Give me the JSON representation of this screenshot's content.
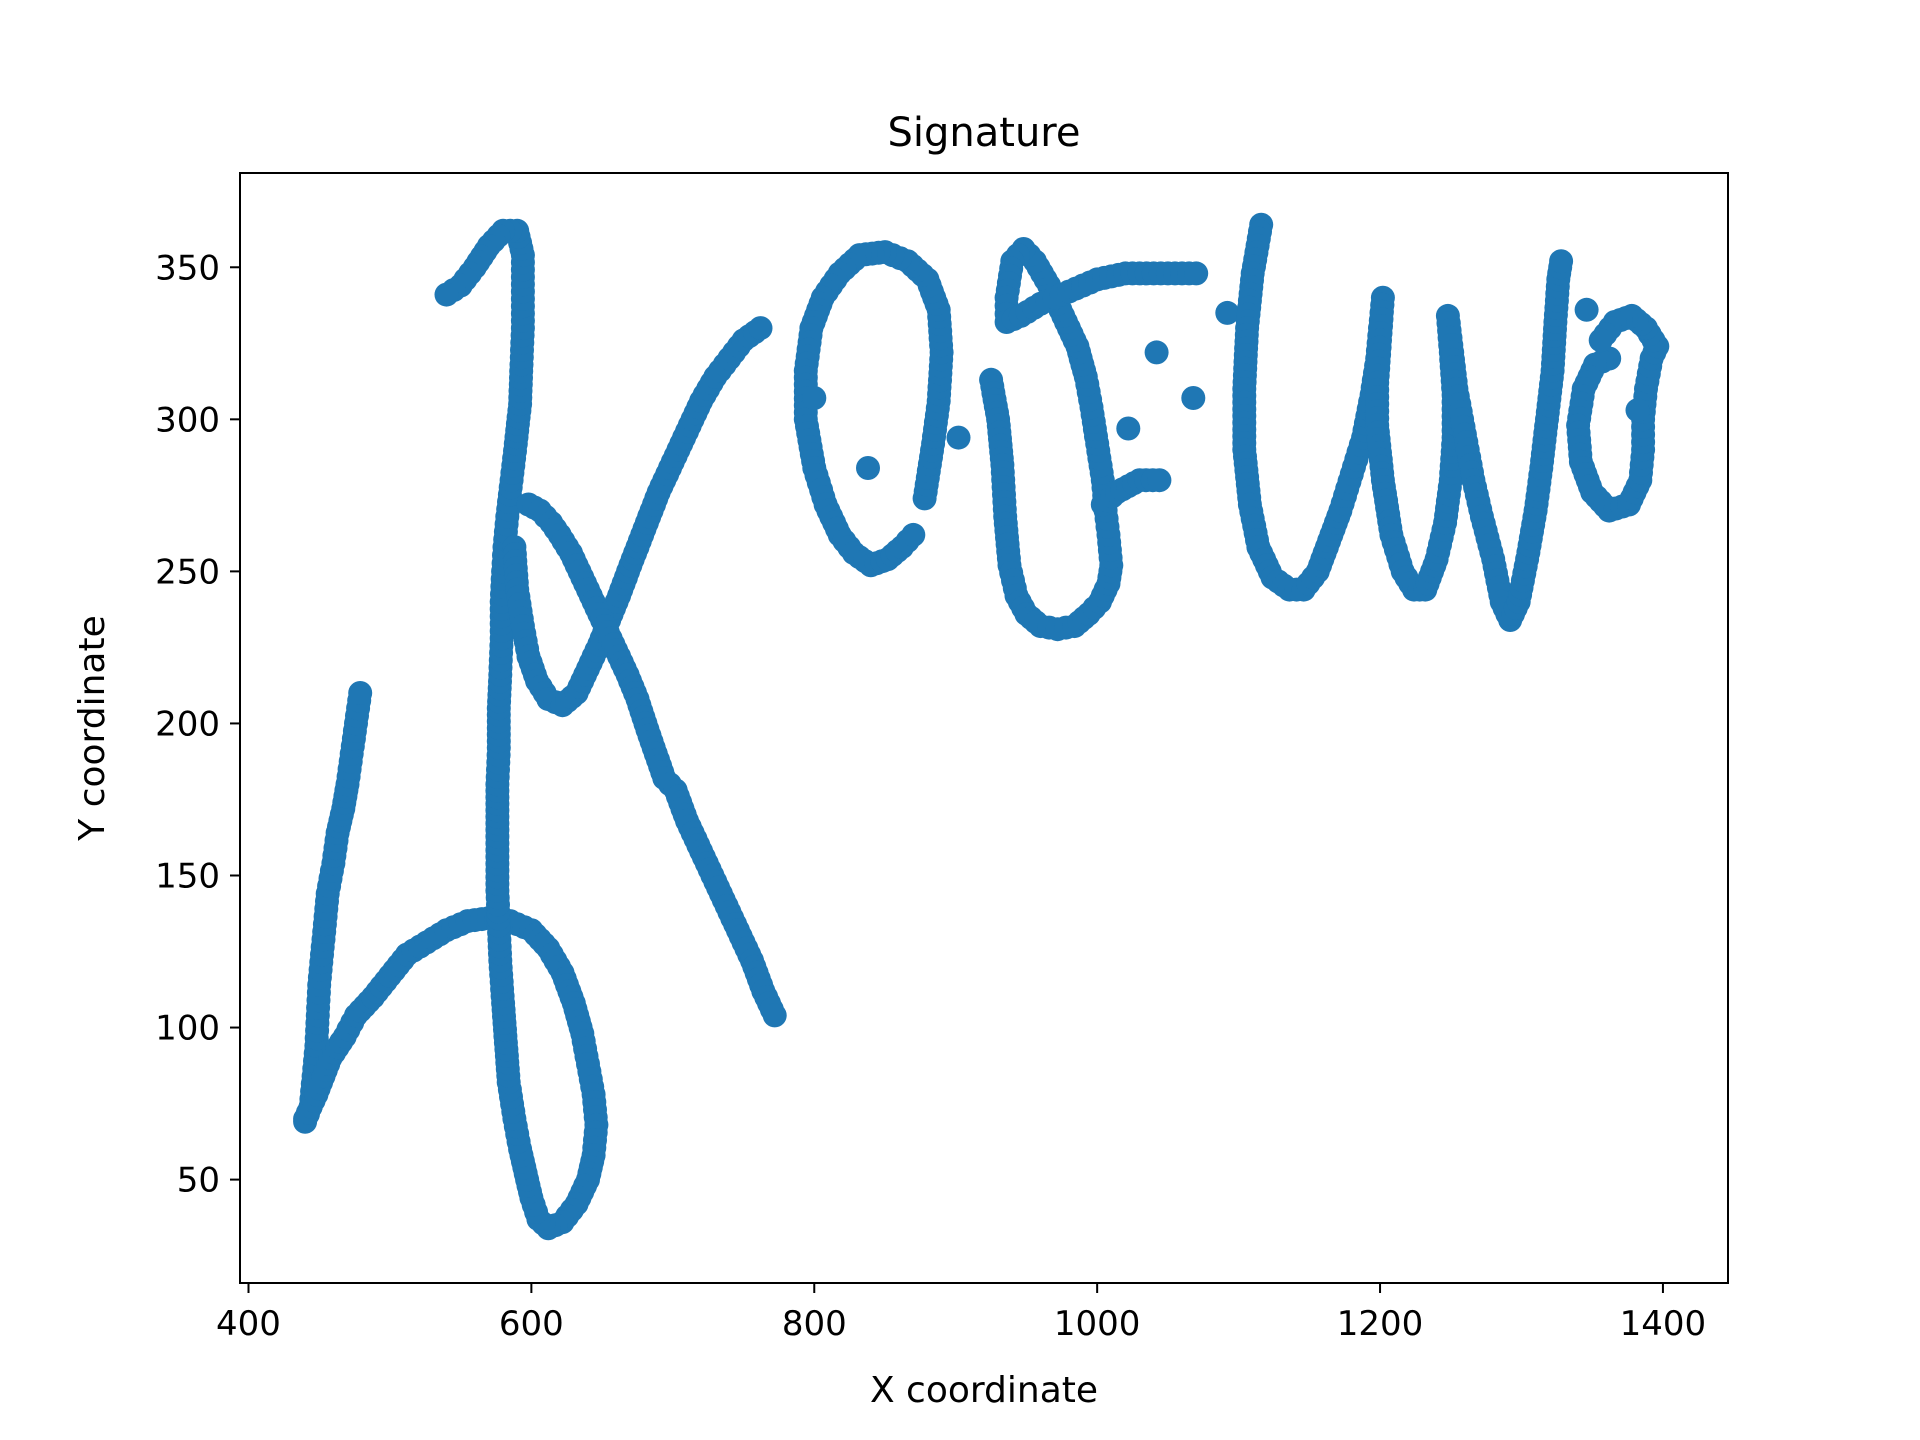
{
  "chart_data": {
    "type": "scatter",
    "title": "Signature",
    "xlabel": "X coordinate",
    "ylabel": "Y coordinate",
    "xlim": [
      394,
      1446
    ],
    "ylim": [
      16,
      381
    ],
    "xticks": [
      400,
      600,
      800,
      1000,
      1200,
      1400
    ],
    "yticks": [
      50,
      100,
      150,
      200,
      250,
      300,
      350
    ],
    "grid": false,
    "marker_color": "#1f77b4",
    "strokes": [
      {
        "points": [
          [
            440,
            69
          ],
          [
            444,
            74
          ],
          [
            446,
            84
          ],
          [
            448,
            94
          ],
          [
            449,
            104
          ],
          [
            450,
            114
          ],
          [
            452,
            124
          ],
          [
            454,
            134
          ],
          [
            456,
            144
          ],
          [
            460,
            154
          ],
          [
            463,
            164
          ],
          [
            467,
            172
          ],
          [
            470,
            180
          ],
          [
            473,
            190
          ],
          [
            476,
            200
          ],
          [
            479,
            210
          ]
        ]
      },
      {
        "points": [
          [
            440,
            70
          ],
          [
            448,
            78
          ],
          [
            458,
            90
          ],
          [
            468,
            97
          ],
          [
            476,
            104
          ],
          [
            488,
            110
          ],
          [
            500,
            117
          ],
          [
            512,
            124
          ],
          [
            526,
            128
          ],
          [
            540,
            132
          ],
          [
            555,
            135
          ],
          [
            570,
            136
          ],
          [
            585,
            135
          ],
          [
            600,
            132
          ],
          [
            612,
            126
          ],
          [
            622,
            118
          ],
          [
            630,
            108
          ],
          [
            636,
            98
          ],
          [
            640,
            88
          ],
          [
            644,
            78
          ],
          [
            646,
            68
          ],
          [
            644,
            58
          ],
          [
            640,
            50
          ],
          [
            632,
            42
          ],
          [
            622,
            36
          ],
          [
            612,
            34
          ],
          [
            605,
            37
          ],
          [
            600,
            44
          ],
          [
            596,
            52
          ],
          [
            592,
            60
          ],
          [
            588,
            70
          ],
          [
            584,
            82
          ],
          [
            582,
            95
          ],
          [
            580,
            108
          ],
          [
            578,
            122
          ],
          [
            576,
            145
          ],
          [
            576,
            165
          ],
          [
            576,
            180
          ],
          [
            577,
            192
          ],
          [
            577,
            205
          ],
          [
            578,
            216
          ],
          [
            579,
            228
          ],
          [
            579,
            240
          ],
          [
            580,
            250
          ],
          [
            581,
            258
          ],
          [
            583,
            268
          ],
          [
            586,
            280
          ],
          [
            589,
            292
          ],
          [
            592,
            305
          ],
          [
            593,
            318
          ],
          [
            594,
            330
          ],
          [
            594,
            342
          ],
          [
            594,
            354
          ],
          [
            590,
            362
          ],
          [
            580,
            362
          ],
          [
            570,
            357
          ],
          [
            560,
            350
          ],
          [
            550,
            344
          ],
          [
            540,
            341
          ]
        ]
      },
      {
        "points": [
          [
            588,
            258
          ],
          [
            590,
            244
          ],
          [
            594,
            232
          ],
          [
            598,
            222
          ],
          [
            604,
            214
          ],
          [
            612,
            208
          ],
          [
            622,
            206
          ],
          [
            632,
            210
          ],
          [
            640,
            218
          ],
          [
            648,
            226
          ],
          [
            655,
            234
          ],
          [
            662,
            242
          ],
          [
            670,
            252
          ],
          [
            680,
            264
          ],
          [
            690,
            276
          ],
          [
            700,
            286
          ],
          [
            710,
            296
          ],
          [
            720,
            306
          ],
          [
            730,
            314
          ],
          [
            740,
            320
          ],
          [
            750,
            326
          ],
          [
            762,
            330
          ]
        ]
      },
      {
        "points": [
          [
            598,
            272
          ],
          [
            606,
            270
          ],
          [
            614,
            266
          ],
          [
            620,
            262
          ],
          [
            628,
            256
          ],
          [
            636,
            248
          ],
          [
            644,
            240
          ],
          [
            652,
            232
          ],
          [
            660,
            224
          ],
          [
            668,
            216
          ],
          [
            675,
            208
          ],
          [
            682,
            198
          ],
          [
            688,
            190
          ],
          [
            694,
            182
          ],
          [
            702,
            178
          ],
          [
            710,
            168
          ],
          [
            720,
            158
          ],
          [
            730,
            148
          ],
          [
            740,
            138
          ],
          [
            748,
            130
          ],
          [
            756,
            122
          ],
          [
            764,
            112
          ],
          [
            772,
            104
          ]
        ]
      },
      {
        "points": [
          [
            878,
            274
          ],
          [
            884,
            292
          ],
          [
            888,
            306
          ],
          [
            890,
            322
          ],
          [
            888,
            336
          ],
          [
            880,
            346
          ],
          [
            866,
            352
          ],
          [
            850,
            355
          ],
          [
            832,
            354
          ],
          [
            818,
            348
          ],
          [
            806,
            340
          ],
          [
            798,
            330
          ],
          [
            794,
            316
          ],
          [
            794,
            300
          ],
          [
            800,
            284
          ],
          [
            808,
            272
          ],
          [
            818,
            262
          ],
          [
            828,
            256
          ],
          [
            840,
            252
          ],
          [
            852,
            254
          ],
          [
            862,
            258
          ],
          [
            870,
            262
          ]
        ]
      },
      {
        "points": [
          [
            800,
            307
          ]
        ]
      },
      {
        "points": [
          [
            838,
            284
          ]
        ]
      },
      {
        "points": [
          [
            902,
            294
          ]
        ]
      },
      {
        "points": [
          [
            925,
            313
          ],
          [
            930,
            300
          ],
          [
            933,
            285
          ],
          [
            935,
            268
          ],
          [
            938,
            252
          ],
          [
            943,
            242
          ],
          [
            950,
            236
          ],
          [
            960,
            232
          ],
          [
            972,
            231
          ],
          [
            984,
            232
          ],
          [
            994,
            236
          ],
          [
            1002,
            240
          ],
          [
            1008,
            246
          ],
          [
            1010,
            252
          ],
          [
            1008,
            262
          ],
          [
            1006,
            270
          ],
          [
            1004,
            280
          ],
          [
            1000,
            292
          ],
          [
            996,
            304
          ],
          [
            992,
            314
          ],
          [
            986,
            324
          ],
          [
            976,
            334
          ],
          [
            966,
            344
          ],
          [
            956,
            352
          ],
          [
            948,
            356
          ],
          [
            940,
            352
          ],
          [
            936,
            340
          ],
          [
            936,
            332
          ],
          [
            946,
            334
          ],
          [
            960,
            338
          ],
          [
            980,
            342
          ],
          [
            1000,
            346
          ],
          [
            1020,
            348
          ],
          [
            1040,
            348
          ],
          [
            1060,
            348
          ],
          [
            1070,
            348
          ]
        ]
      },
      {
        "points": [
          [
            1004,
            272
          ],
          [
            1014,
            276
          ],
          [
            1030,
            280
          ],
          [
            1044,
            280
          ]
        ]
      },
      {
        "points": [
          [
            1042,
            322
          ]
        ]
      },
      {
        "points": [
          [
            1068,
            307
          ]
        ]
      },
      {
        "points": [
          [
            1022,
            297
          ]
        ]
      },
      {
        "points": [
          [
            1092,
            335
          ]
        ]
      },
      {
        "points": [
          [
            1116,
            364
          ],
          [
            1110,
            348
          ],
          [
            1106,
            330
          ],
          [
            1104,
            310
          ],
          [
            1104,
            290
          ],
          [
            1108,
            272
          ],
          [
            1114,
            258
          ],
          [
            1124,
            248
          ],
          [
            1136,
            244
          ],
          [
            1146,
            244
          ],
          [
            1156,
            250
          ],
          [
            1164,
            260
          ],
          [
            1172,
            270
          ],
          [
            1180,
            282
          ],
          [
            1188,
            294
          ],
          [
            1194,
            308
          ],
          [
            1198,
            320
          ],
          [
            1200,
            330
          ],
          [
            1202,
            340
          ],
          [
            1200,
            326
          ],
          [
            1198,
            312
          ],
          [
            1198,
            298
          ],
          [
            1202,
            280
          ],
          [
            1208,
            262
          ],
          [
            1216,
            250
          ],
          [
            1224,
            244
          ],
          [
            1232,
            244
          ],
          [
            1240,
            254
          ],
          [
            1246,
            266
          ],
          [
            1250,
            280
          ],
          [
            1252,
            294
          ],
          [
            1252,
            308
          ],
          [
            1250,
            322
          ],
          [
            1248,
            334
          ],
          [
            1254,
            310
          ],
          [
            1258,
            300
          ],
          [
            1262,
            290
          ],
          [
            1266,
            280
          ],
          [
            1272,
            268
          ],
          [
            1280,
            254
          ],
          [
            1286,
            240
          ],
          [
            1292,
            234
          ],
          [
            1298,
            240
          ],
          [
            1304,
            254
          ],
          [
            1310,
            270
          ],
          [
            1314,
            284
          ],
          [
            1318,
            300
          ],
          [
            1322,
            316
          ],
          [
            1324,
            332
          ],
          [
            1326,
            346
          ],
          [
            1328,
            352
          ]
        ]
      },
      {
        "points": [
          [
            1346,
            336
          ]
        ]
      },
      {
        "points": [
          [
            1362,
            320
          ],
          [
            1352,
            318
          ],
          [
            1344,
            310
          ],
          [
            1340,
            298
          ],
          [
            1342,
            286
          ],
          [
            1350,
            276
          ],
          [
            1362,
            270
          ],
          [
            1376,
            272
          ],
          [
            1384,
            280
          ],
          [
            1386,
            290
          ],
          [
            1386,
            300
          ],
          [
            1388,
            310
          ],
          [
            1392,
            320
          ],
          [
            1396,
            324
          ],
          [
            1388,
            330
          ],
          [
            1378,
            334
          ],
          [
            1366,
            332
          ],
          [
            1356,
            326
          ]
        ]
      },
      {
        "points": [
          [
            1382,
            303
          ]
        ]
      }
    ]
  }
}
